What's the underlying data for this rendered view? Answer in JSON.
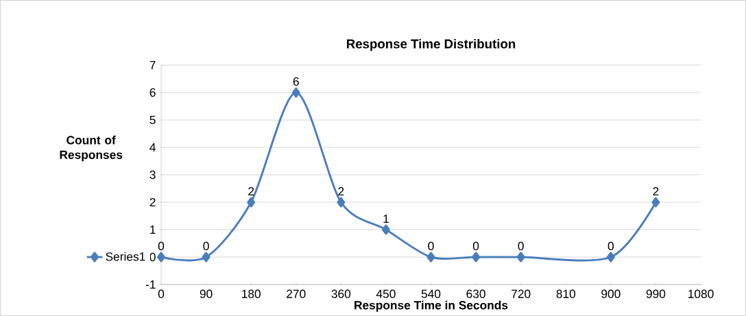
{
  "chart_data": {
    "type": "line",
    "title": "Response Time Distribution",
    "xlabel": "Response Time in Seconds",
    "ylabel": "Count of Responses",
    "x": [
      0,
      90,
      180,
      270,
      360,
      450,
      540,
      630,
      720,
      900,
      990
    ],
    "series": [
      {
        "name": "Series1",
        "color": "#4a7ebb",
        "values": [
          0,
          0,
          2,
          6,
          2,
          1,
          0,
          0,
          0,
          0,
          2
        ]
      }
    ],
    "xlim": [
      0,
      1080
    ],
    "xticks": [
      0,
      90,
      180,
      270,
      360,
      450,
      540,
      630,
      720,
      810,
      900,
      990,
      1080
    ],
    "ylim": [
      -1,
      7
    ],
    "yticks": [
      -1,
      0,
      1,
      2,
      3,
      4,
      5,
      6,
      7
    ],
    "grid": "y",
    "legend": "left",
    "marker": "diamond",
    "line_style": "solid",
    "data_labels": true
  }
}
